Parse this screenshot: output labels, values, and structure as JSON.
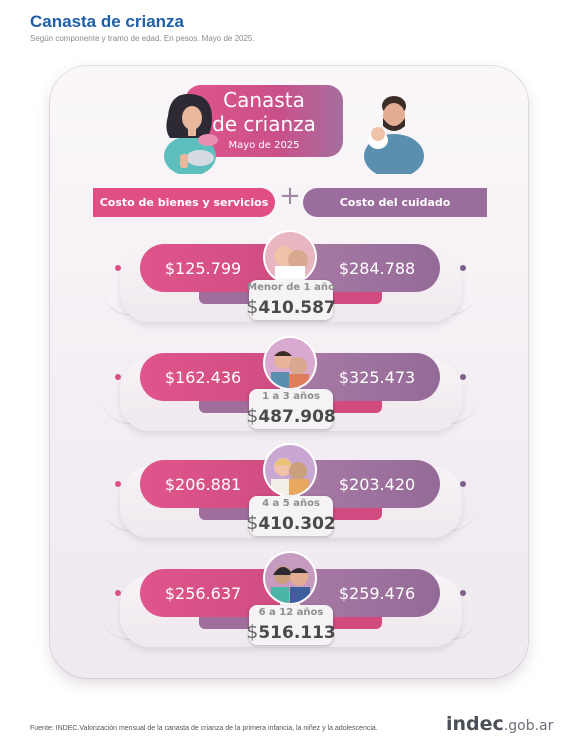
{
  "header": {
    "title": "Canasta de crianza",
    "subtitle": "Según componente y tramo de edad. En pesos. Mayo de 2025."
  },
  "hero": {
    "title_line1": "Canasta",
    "title_line2": "de crianza",
    "date": "Mayo de 2025"
  },
  "columns": {
    "left_label": "Costo de bienes y servicios",
    "plus": "+",
    "right_label": "Costo del cuidado"
  },
  "rows": [
    {
      "age": "Menor de 1 año",
      "goods": "$125.799",
      "care": "$284.788",
      "total_currency": "$",
      "total": "410.587"
    },
    {
      "age": "1 a 3 años",
      "goods": "$162.436",
      "care": "$325.473",
      "total_currency": "$",
      "total": "487.908"
    },
    {
      "age": "4 a 5 años",
      "goods": "$206.881",
      "care": "$203.420",
      "total_currency": "$",
      "total": "410.302"
    },
    {
      "age": "6 a 12 años",
      "goods": "$256.637",
      "care": "$259.476",
      "total_currency": "$",
      "total": "516.113"
    }
  ],
  "footer": {
    "source": "Fuente: INDEC.Valorización mensual de la canasta de crianza de la primera infancia, la niñez y la adolescencia.",
    "brand_main": "indec",
    "brand_suffix": ".gob.ar"
  },
  "colors": {
    "title_blue": "#1f5fa8",
    "goods_pink": "#df4f86",
    "care_purple": "#9a6d9c"
  }
}
